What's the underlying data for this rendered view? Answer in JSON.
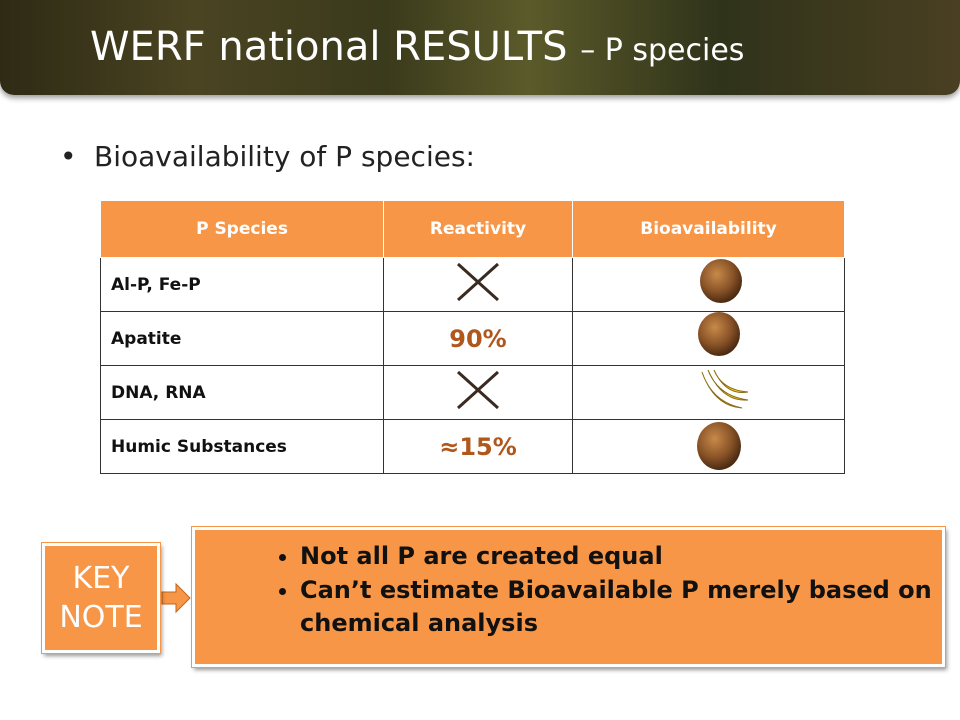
{
  "header": {
    "title": "WERF national RESULTS",
    "subtitle": "– P species"
  },
  "bullet": "Bioavailability of P species:",
  "table": {
    "columns": [
      "P Species",
      "Reactivity",
      "Bioavailability"
    ],
    "rows": [
      {
        "species": "Al-P, Fe-P"
      },
      {
        "species": "Apatite",
        "reactivity": "90%"
      },
      {
        "species": "DNA, RNA"
      },
      {
        "species": "Humic Substances",
        "reactivity": "≈15%"
      }
    ]
  },
  "key_note": {
    "label": "KEY NOTE",
    "points": [
      "Not all P are created equal",
      "Can’t estimate Bioavailable P merely based on chemical analysis"
    ]
  }
}
